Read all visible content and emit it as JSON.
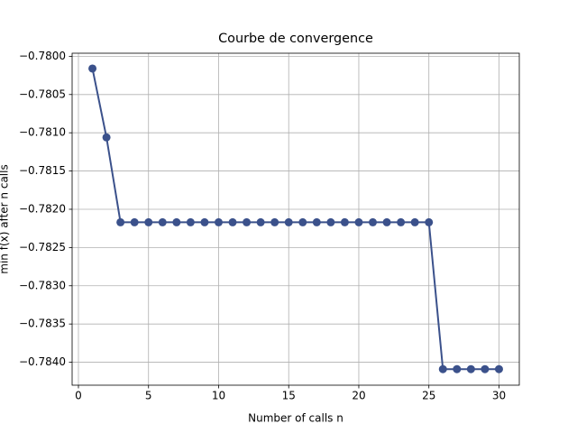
{
  "chart_data": {
    "type": "line",
    "title": "Courbe de convergence",
    "xlabel": "Number of calls n",
    "ylabel": "min f(x) after n calls",
    "x": [
      1,
      2,
      3,
      4,
      5,
      6,
      7,
      8,
      9,
      10,
      11,
      12,
      13,
      14,
      15,
      16,
      17,
      18,
      19,
      20,
      21,
      22,
      23,
      24,
      25,
      26,
      27,
      28,
      29,
      30
    ],
    "series": [
      {
        "color": "#3b518b",
        "values": [
          -0.78016,
          -0.78106,
          -0.78217,
          -0.78217,
          -0.78217,
          -0.78217,
          -0.78217,
          -0.78217,
          -0.78217,
          -0.78217,
          -0.78217,
          -0.78217,
          -0.78217,
          -0.78217,
          -0.78217,
          -0.78217,
          -0.78217,
          -0.78217,
          -0.78217,
          -0.78217,
          -0.78217,
          -0.78217,
          -0.78217,
          -0.78217,
          -0.78217,
          -0.78409,
          -0.78409,
          -0.78409,
          -0.78409,
          -0.78409
        ]
      }
    ],
    "xlim": [
      -0.45,
      31.45
    ],
    "ylim": [
      -0.7843,
      -0.77996
    ],
    "xticks": [
      0,
      5,
      10,
      15,
      20,
      25,
      30
    ],
    "yticks": [
      {
        "value": -0.78,
        "label": "−0.7800"
      },
      {
        "value": -0.7805,
        "label": "−0.7805"
      },
      {
        "value": -0.781,
        "label": "−0.7810"
      },
      {
        "value": -0.7815,
        "label": "−0.7815"
      },
      {
        "value": -0.782,
        "label": "−0.7820"
      },
      {
        "value": -0.7825,
        "label": "−0.7825"
      },
      {
        "value": -0.783,
        "label": "−0.7830"
      },
      {
        "value": -0.7835,
        "label": "−0.7835"
      },
      {
        "value": -0.784,
        "label": "−0.7840"
      }
    ],
    "grid": true
  }
}
